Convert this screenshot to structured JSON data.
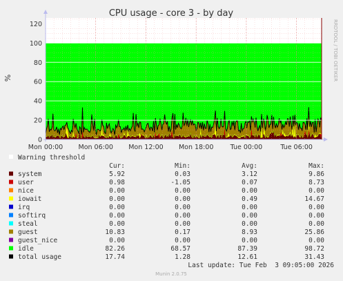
{
  "chart_data": {
    "type": "area",
    "title": "CPU usage - core 3 - by day",
    "ylabel": "%",
    "side_label": "RRDTOOL / TOBI OETIKER",
    "ylim": [
      0,
      126
    ],
    "yticks": [
      0,
      20,
      40,
      60,
      80,
      100,
      120
    ],
    "xlim_hours": [
      0,
      33
    ],
    "xticks": [
      {
        "label": "Mon 00:00",
        "h": 0
      },
      {
        "label": "Mon 06:00",
        "h": 6
      },
      {
        "label": "Mon 12:00",
        "h": 12
      },
      {
        "label": "Mon 18:00",
        "h": 18
      },
      {
        "label": "Tue 00:00",
        "h": 24
      },
      {
        "label": "Tue 06:00",
        "h": 30
      }
    ],
    "grid": true,
    "legend_note": "Warning threshold",
    "legend_headers": {
      "cur": "Cur:",
      "min": "Min:",
      "avg": "Avg:",
      "max": "Max:"
    },
    "series": [
      {
        "name": "system",
        "color": "#660000",
        "cur": "5.92",
        "min": "0.03",
        "avg": "3.12",
        "max": "9.86"
      },
      {
        "name": "user",
        "color": "#cc0000",
        "cur": "0.98",
        "min": "-1.05",
        "avg": "0.07",
        "max": "8.73"
      },
      {
        "name": "nice",
        "color": "#ff8000",
        "cur": "0.00",
        "min": "0.00",
        "avg": "0.00",
        "max": "0.00"
      },
      {
        "name": "iowait",
        "color": "#ffff00",
        "cur": "0.00",
        "min": "0.00",
        "avg": "0.49",
        "max": "14.67"
      },
      {
        "name": "irq",
        "color": "#0000cc",
        "cur": "0.00",
        "min": "0.00",
        "avg": "0.00",
        "max": "0.00"
      },
      {
        "name": "softirq",
        "color": "#0080ff",
        "cur": "0.00",
        "min": "0.00",
        "avg": "0.00",
        "max": "0.00"
      },
      {
        "name": "steal",
        "color": "#00ffff",
        "cur": "0.00",
        "min": "0.00",
        "avg": "0.00",
        "max": "0.00"
      },
      {
        "name": "guest",
        "color": "#a08000",
        "cur": "10.83",
        "min": "0.17",
        "avg": "8.93",
        "max": "25.86"
      },
      {
        "name": "guest_nice",
        "color": "#8000a0",
        "cur": "0.00",
        "min": "0.00",
        "avg": "0.00",
        "max": "0.00"
      },
      {
        "name": "idle",
        "color": "#00ff00",
        "cur": "82.26",
        "min": "68.57",
        "avg": "87.39",
        "max": "98.72"
      },
      {
        "name": "total usage",
        "color": "#000000",
        "cur": "17.74",
        "min": "1.28",
        "avg": "12.61",
        "max": "31.43"
      }
    ],
    "last_update": "Last update: Tue Feb  3 09:05:00 2026",
    "footer": "Munin 2.0.75"
  }
}
